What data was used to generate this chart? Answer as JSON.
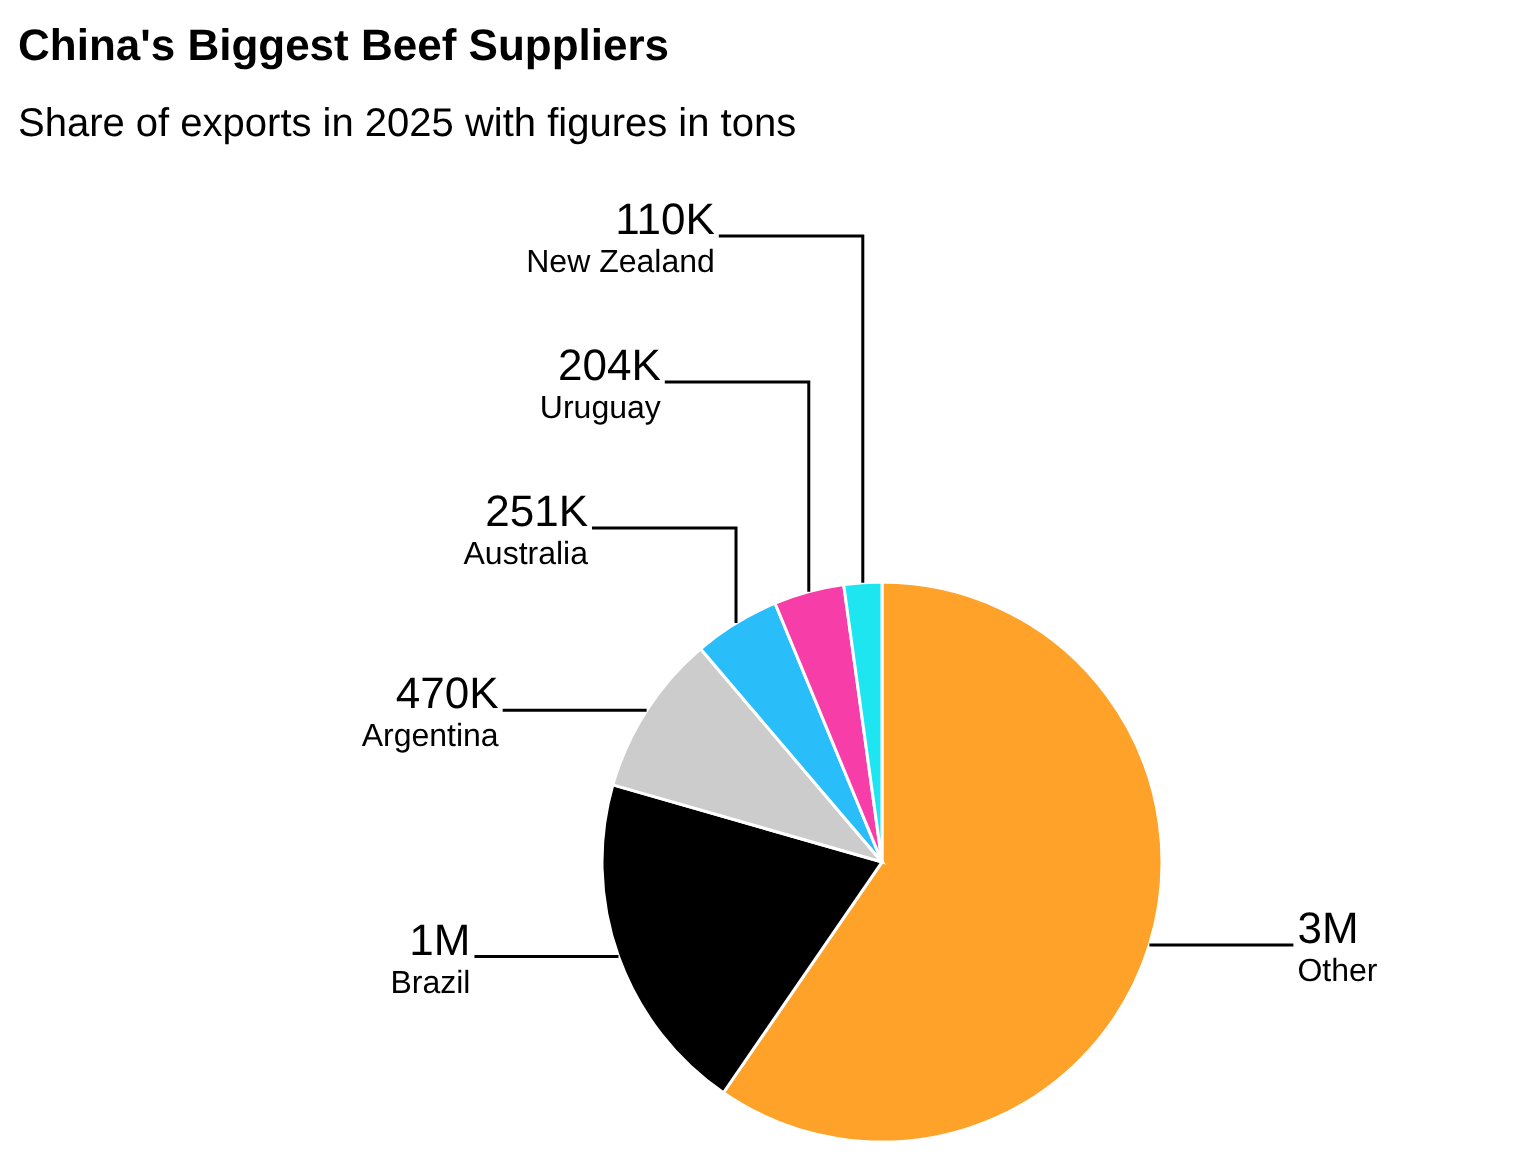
{
  "chart_data": {
    "type": "pie",
    "title": "China's Biggest Beef Suppliers",
    "subtitle": "Share of exports in 2025 with figures in tons",
    "categories": [
      "Other",
      "Brazil",
      "Argentina",
      "Australia",
      "Uruguay",
      "New Zealand"
    ],
    "values": [
      3000000,
      1000000,
      470000,
      251000,
      204000,
      110000
    ],
    "value_labels": [
      "3M",
      "1M",
      "470K",
      "251K",
      "204K",
      "110K"
    ],
    "colors": [
      "#ffa22a",
      "#000000",
      "#cccccc",
      "#29bdf9",
      "#f73ea8",
      "#1de6f0"
    ],
    "legend": false
  }
}
